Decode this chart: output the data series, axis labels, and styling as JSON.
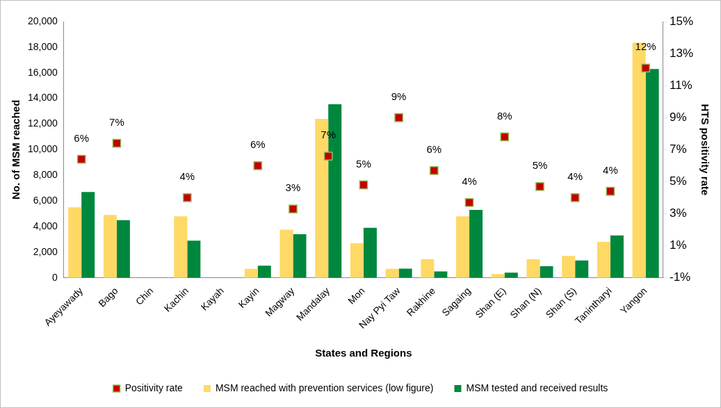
{
  "chart_data": {
    "type": "bar",
    "xlabel": "States and Regions",
    "ylabel": "No. of MSM reached",
    "y2label": "HTS positivity rate",
    "categories": [
      "Ayeyawady",
      "Bago",
      "Chin",
      "Kachin",
      "Kayah",
      "Kayin",
      "Magway",
      "Mandalay",
      "Mon",
      "Nay Pyi Taw",
      "Rakhine",
      "Sagaing",
      "Shan (E)",
      "Shan (N)",
      "Shan (S)",
      "Tanintharyi",
      "Yangon"
    ],
    "series": [
      {
        "name": "MSM reached with prevention services (low figure)",
        "color": "#ffd966",
        "values": [
          5500,
          4900,
          0,
          4800,
          0,
          700,
          3750,
          12400,
          2700,
          700,
          1450,
          4800,
          300,
          1450,
          1700,
          2800,
          18350
        ]
      },
      {
        "name": "MSM tested and received results",
        "color": "#00873e",
        "values": [
          6700,
          4500,
          0,
          2900,
          0,
          950,
          3400,
          13550,
          3900,
          720,
          500,
          5300,
          400,
          900,
          1350,
          3300,
          16300
        ]
      },
      {
        "name": "Positivity rate",
        "type": "scatter",
        "axis": "y2",
        "color": "#c00000",
        "values": [
          6.4,
          7.4,
          null,
          4.0,
          null,
          6.0,
          3.3,
          6.6,
          4.8,
          9.0,
          5.7,
          3.7,
          7.8,
          4.7,
          4.0,
          4.4,
          12.1
        ],
        "value_labels": [
          "6%",
          "7%",
          null,
          "4%",
          null,
          "6%",
          "3%",
          "7%",
          "5%",
          "9%",
          "6%",
          "4%",
          "8%",
          "5%",
          "4%",
          "4%",
          "12%"
        ]
      }
    ],
    "ylim": [
      0,
      20000
    ],
    "yticks": [
      0,
      {
        "value": 2000,
        "label": "2,000"
      },
      {
        "value": 4000,
        "label": "4,000"
      },
      {
        "value": 6000,
        "label": "6,000"
      },
      {
        "value": 8000,
        "label": "8,000"
      },
      {
        "value": 10000,
        "label": "10,000"
      },
      {
        "value": 12000,
        "label": "12,000"
      },
      {
        "value": 14000,
        "label": "14,000"
      },
      {
        "value": 16000,
        "label": "16,000"
      },
      {
        "value": 18000,
        "label": "18,000"
      },
      {
        "value": 20000,
        "label": "20,000"
      }
    ],
    "y2lim": [
      -1,
      15
    ],
    "y2ticks": [
      {
        "value": -1,
        "label": "-1%"
      },
      {
        "value": 1,
        "label": "1%"
      },
      {
        "value": 3,
        "label": "3%"
      },
      {
        "value": 5,
        "label": "5%"
      },
      {
        "value": 7,
        "label": "7%"
      },
      {
        "value": 9,
        "label": "9%"
      },
      {
        "value": 11,
        "label": "11%"
      },
      {
        "value": 13,
        "label": "13%"
      },
      {
        "value": 15,
        "label": "15%"
      }
    ],
    "grid": false,
    "legend": "bottom",
    "marker": "square"
  }
}
